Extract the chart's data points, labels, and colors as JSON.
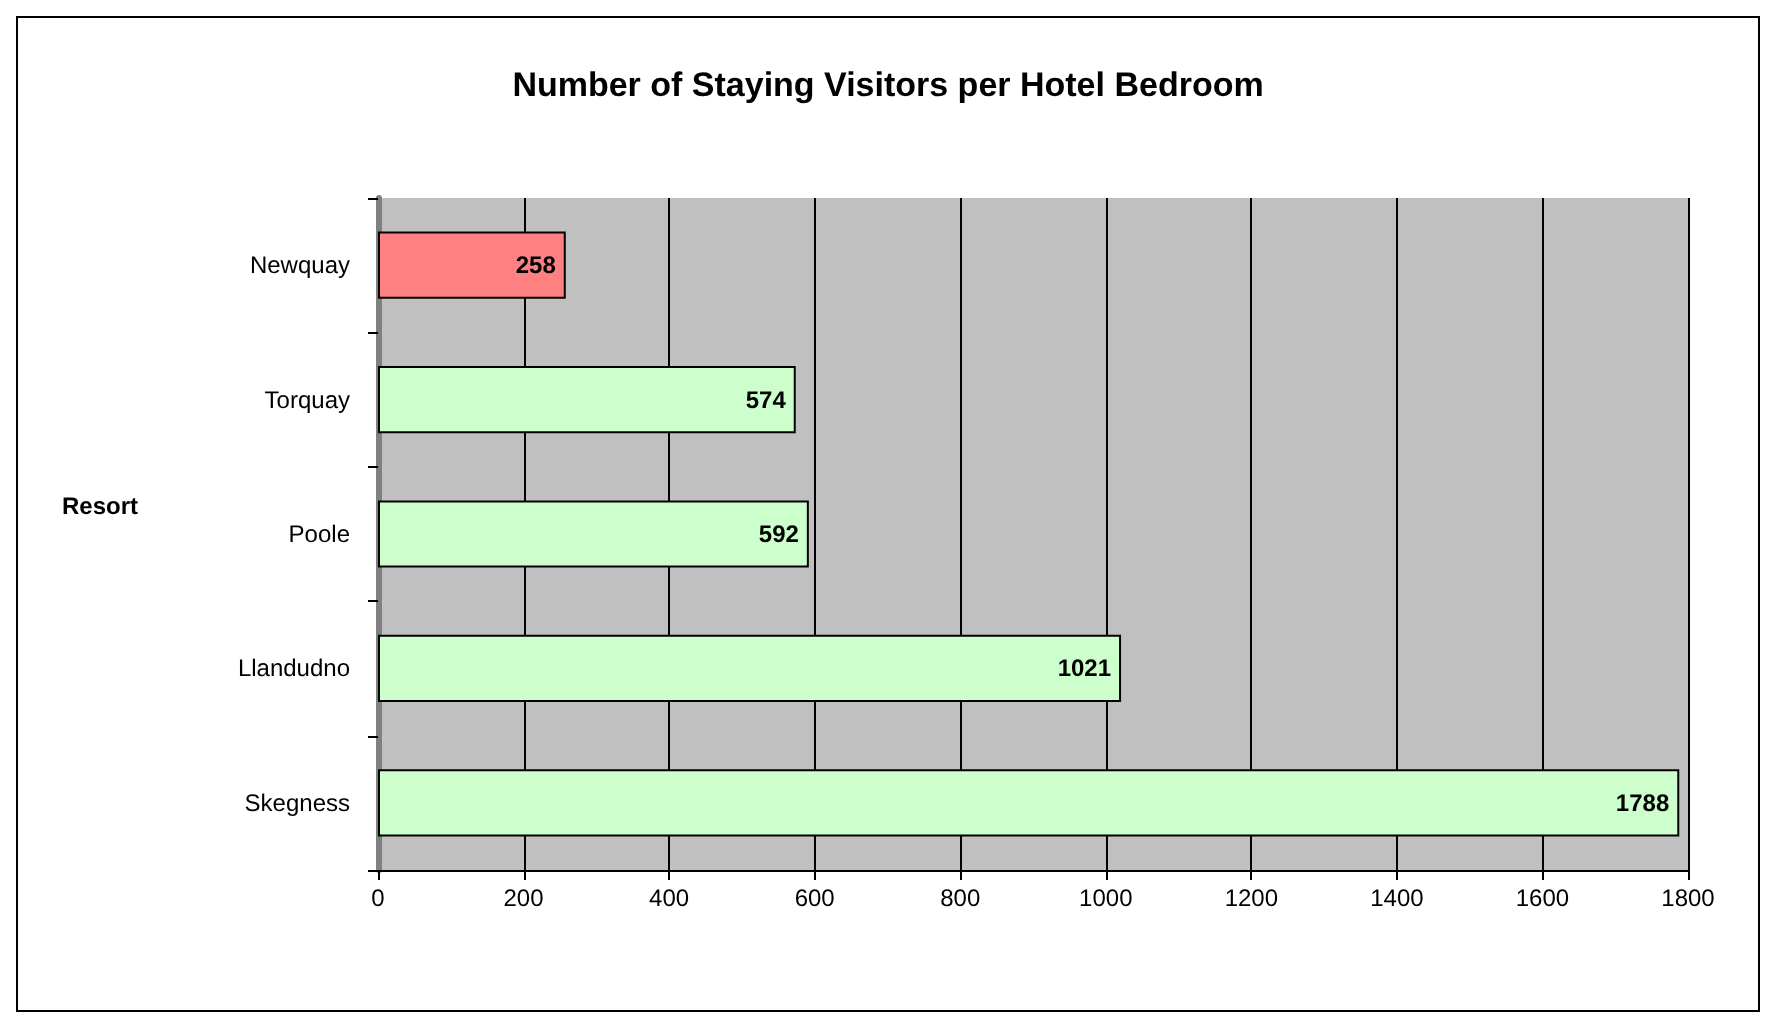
{
  "chart_data": {
    "type": "bar",
    "orientation": "horizontal",
    "title": "Number of Staying Visitors per Hotel Bedroom",
    "ylabel": "Resort",
    "categories": [
      "Newquay",
      "Torquay",
      "Poole",
      "Llandudno",
      "Skegness"
    ],
    "values": [
      258,
      574,
      592,
      1021,
      1788
    ],
    "colors": [
      "#ff8080",
      "#ccffcc",
      "#ccffcc",
      "#ccffcc",
      "#ccffcc"
    ],
    "xlim": [
      0,
      1800
    ],
    "xticks": [
      0,
      200,
      400,
      600,
      800,
      1000,
      1200,
      1400,
      1600,
      1800
    ],
    "grid": "x",
    "data_labels": true
  }
}
